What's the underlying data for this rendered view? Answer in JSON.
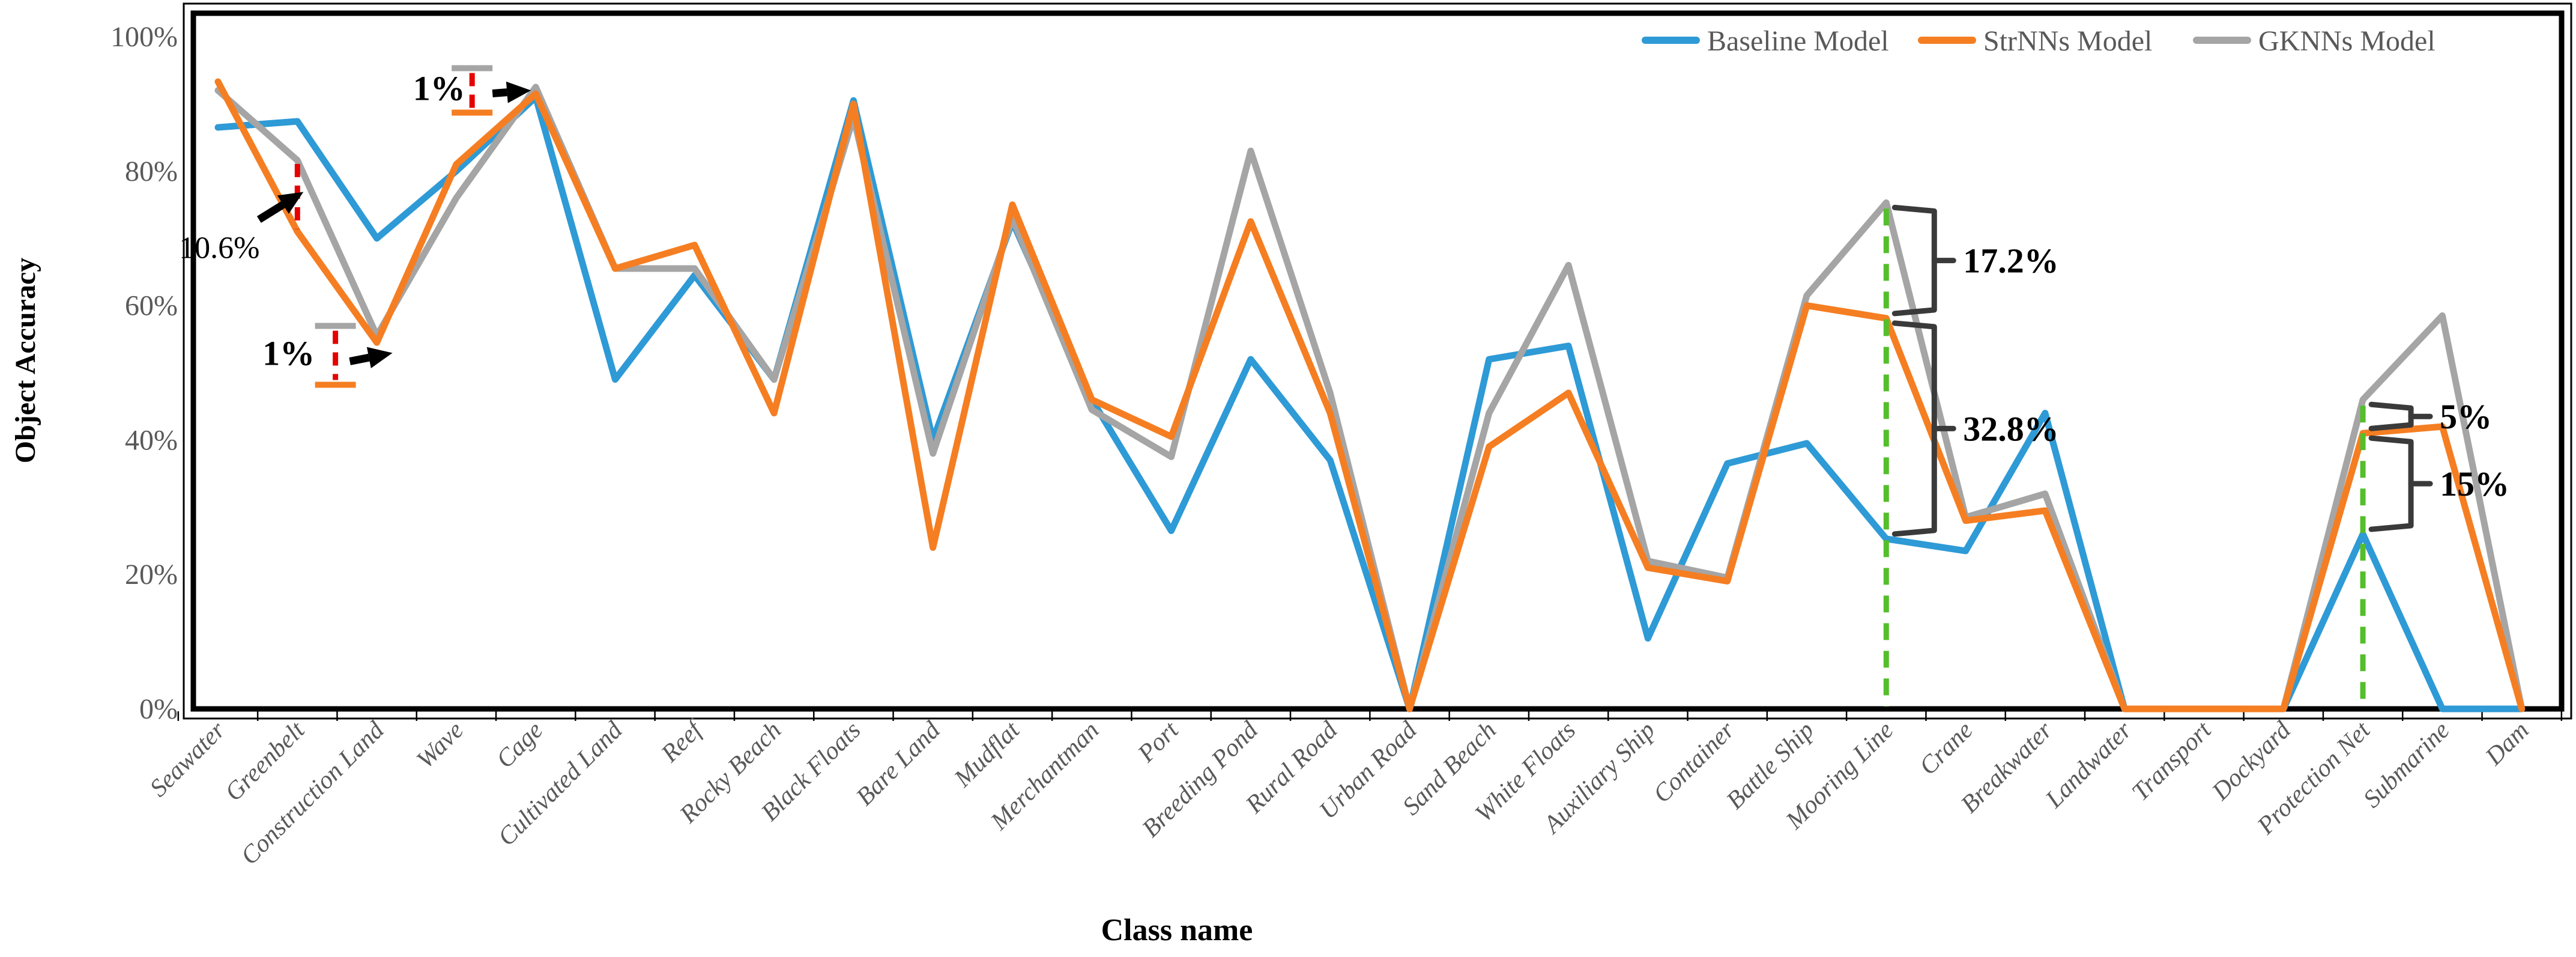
{
  "chart_data": {
    "type": "line",
    "title": "",
    "xlabel": "Class name",
    "ylabel": "Object Accuracy",
    "ylim": [
      0,
      100
    ],
    "y_ticks": [
      {
        "label": "0%",
        "value": 0
      },
      {
        "label": "20%",
        "value": 20
      },
      {
        "label": "40%",
        "value": 40
      },
      {
        "label": "60%",
        "value": 60
      },
      {
        "label": "80%",
        "value": 80
      },
      {
        "label": "100%",
        "value": 100
      }
    ],
    "grid": "off",
    "legend_position": "top-right-inside",
    "categories": [
      "Seawater",
      "Greenbelt",
      "Construction Land",
      "Wave",
      "Cage",
      "Cultivated Land",
      "Reef",
      "Rocky Beach",
      "Black Floats",
      "Bare Land",
      "Mudflat",
      "Merchantman",
      "Port",
      "Breeding Pond",
      "Rural Road",
      "Urban Road",
      "Sand Beach",
      "White Floats",
      "Auxiliary Ship",
      "Container",
      "Battle Ship",
      "Mooring Line",
      "Crane",
      "Breakwater",
      "Landwater",
      "Transport",
      "Dockyard",
      "Protection Net",
      "Submarine",
      "Dam"
    ],
    "series": [
      {
        "name": "Baseline Model",
        "color": "#2E9AD6",
        "values": [
          86.5,
          87.4,
          70,
          80,
          91,
          49,
          64.5,
          49,
          90.5,
          40,
          72.5,
          46,
          26.5,
          52,
          37,
          0,
          52,
          54,
          10.5,
          36.5,
          39.5,
          25.3,
          23.5,
          44,
          0,
          0,
          0,
          26,
          0,
          0
        ]
      },
      {
        "name": "StrNNs Model",
        "color": "#F57E22",
        "values": [
          93.3,
          71,
          54.5,
          81,
          91.5,
          65.5,
          69,
          44,
          90,
          24,
          75,
          46,
          40.5,
          72.5,
          44,
          0,
          39,
          47,
          21,
          19,
          60,
          58.1,
          28,
          29.5,
          0,
          0,
          0,
          41,
          42,
          0
        ]
      },
      {
        "name": "GKNNs Model",
        "color": "#A5A5A5",
        "values": [
          92,
          81.6,
          55.5,
          76,
          92.5,
          65.5,
          65.5,
          49,
          88,
          38,
          73,
          44.5,
          37.5,
          83,
          47,
          0,
          44,
          66,
          22,
          19.5,
          61.5,
          75.3,
          28.5,
          32,
          0,
          0,
          0,
          46,
          58.5,
          0
        ]
      }
    ],
    "annotations": [
      {
        "text": "10.6%",
        "kind": "dash-arrow",
        "category": "Greenbelt",
        "between": [
          "GKNNs Model",
          "StrNNs Model"
        ]
      },
      {
        "text": "1%",
        "kind": "dash-caps-arrow",
        "category": "Construction Land",
        "between": [
          "GKNNs Model",
          "StrNNs Model"
        ]
      },
      {
        "text": "1%",
        "kind": "dash-caps-arrow",
        "category": "Cage",
        "between": [
          "GKNNs Model",
          "StrNNs Model"
        ]
      },
      {
        "text": "17.2%",
        "kind": "brace",
        "category": "Mooring Line",
        "between": [
          "GKNNs Model",
          "StrNNs Model"
        ]
      },
      {
        "text": "32.8%",
        "kind": "brace",
        "category": "Mooring Line",
        "between": [
          "StrNNs Model",
          "Baseline Model"
        ]
      },
      {
        "text": "5%",
        "kind": "brace",
        "category": "Protection Net",
        "between": [
          "GKNNs Model",
          "StrNNs Model"
        ]
      },
      {
        "text": "15%",
        "kind": "brace",
        "category": "Protection Net",
        "between": [
          "StrNNs Model",
          "Baseline Model"
        ]
      }
    ],
    "guides": [
      {
        "kind": "vertical-dashed",
        "category": "Mooring Line",
        "color": "#55BE2B"
      },
      {
        "kind": "vertical-dashed",
        "category": "Protection Net",
        "color": "#55BE2B"
      }
    ],
    "annotation_colors": {
      "dash": "#E60000",
      "arrow": "#000000",
      "brace": "#3a3a3a"
    }
  }
}
